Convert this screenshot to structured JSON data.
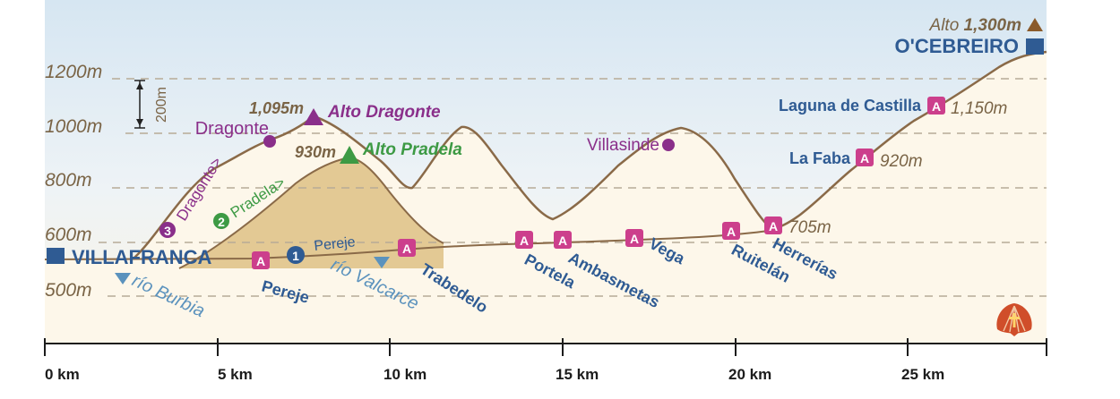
{
  "elevation_labels": [
    "1200m",
    "1000m",
    "800m",
    "600m",
    "500m"
  ],
  "km_labels": [
    "0 km",
    "5 km",
    "10 km",
    "15 km",
    "20 km",
    "25 km"
  ],
  "scale_bar_label": "200m",
  "start_town": "VILLAFRANCA",
  "end_town": "O'CEBREIRO",
  "summit": {
    "prefix": "Alto",
    "value": "1,300m"
  },
  "alto_dragonte": {
    "elevation": "1,095m",
    "name": "Alto Dragonte"
  },
  "alto_pradela": {
    "elevation": "930m",
    "name": "Alto Pradela"
  },
  "route_variants": {
    "dragonte": {
      "number": "3",
      "path_label": "Dragonte>",
      "village": "Dragonte"
    },
    "pradela": {
      "number": "2",
      "path_label": "Pradela>"
    },
    "pereje": {
      "number": "1",
      "path_label": "Pereje"
    }
  },
  "villasinde": "Villasinde",
  "albergue_symbol": "A",
  "villages": [
    {
      "name": "Pereje"
    },
    {
      "name": "Trabedelo"
    },
    {
      "name": "Portela"
    },
    {
      "name": "Ambasmetas"
    },
    {
      "name": "Vega"
    },
    {
      "name": "Ruitelán"
    },
    {
      "name": "Herrerías",
      "elevation": "705m"
    },
    {
      "name": "La Faba",
      "elevation": "920m"
    },
    {
      "name": "Laguna de Castilla",
      "elevation": "1,150m"
    }
  ],
  "rivers": [
    "río Burbia",
    "río Valcarce"
  ],
  "colors": {
    "route_line": "#8a6a48",
    "fill_light": "#fdf7ea",
    "fill_tan": "#e3c994",
    "sky_top": "#d6e6f2",
    "albergue": "#cc3f8c",
    "dragonte": "#8a2f8a",
    "pradela": "#3d9a44",
    "town_blue": "#2f5b93",
    "river_blue": "#5b92bd",
    "summit_brown": "#8a5a2a",
    "elevation_text": "#7a6446"
  },
  "icons": [
    "albergue-icon",
    "summit-triangle-icon",
    "town-square-icon",
    "scallop-shell-icon",
    "river-marker-icon"
  ]
}
